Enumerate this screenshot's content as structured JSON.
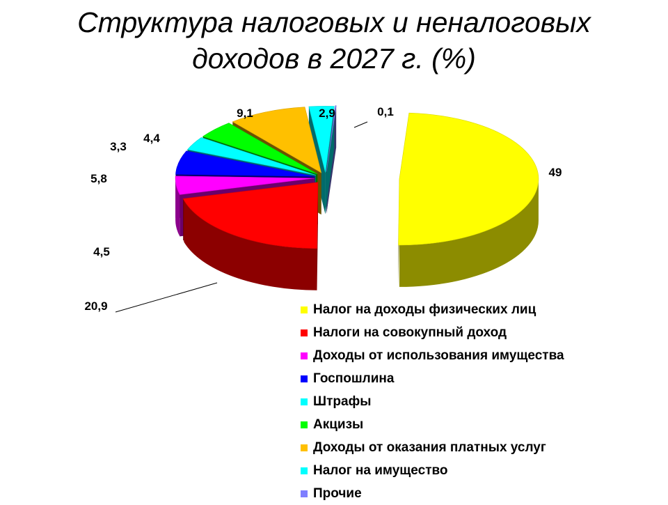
{
  "chart_data": {
    "type": "pie",
    "title": "Структура налоговых и неналоговых доходов в 2027 г. (%)",
    "title_lines": [
      "Структура налоговых и неналоговых",
      "доходов в 2027 г. (%)"
    ],
    "style": "3d-exploded",
    "legend_position": "bottom-right",
    "slices": [
      {
        "label": "Налог на доходы физических лиц",
        "value": 49,
        "value_label": "49",
        "color": "#FFFF00"
      },
      {
        "label": "Налоги на совокупный доход",
        "value": 20.9,
        "value_label": "20,9",
        "color": "#FF0000"
      },
      {
        "label": "Доходы от использования имущества",
        "value": 4.5,
        "value_label": "4,5",
        "color": "#FF00FF"
      },
      {
        "label": "Госпошлина",
        "value": 5.8,
        "value_label": "5,8",
        "color": "#0000FF"
      },
      {
        "label": "Штрафы",
        "value": 3.3,
        "value_label": "3,3",
        "color": "#00FFFF"
      },
      {
        "label": "Акцизы",
        "value": 4.4,
        "value_label": "4,4",
        "color": "#00FF00"
      },
      {
        "label": "Доходы от оказания платных услуг",
        "value": 9.1,
        "value_label": "9,1",
        "color": "#FFC000"
      },
      {
        "label": "Налог на имущество",
        "value": 2.9,
        "value_label": "2,9",
        "color": "#00FFFF"
      },
      {
        "label": "Прочие",
        "value": 0.1,
        "value_label": "0,1",
        "color": "#7F7FFF"
      }
    ]
  }
}
